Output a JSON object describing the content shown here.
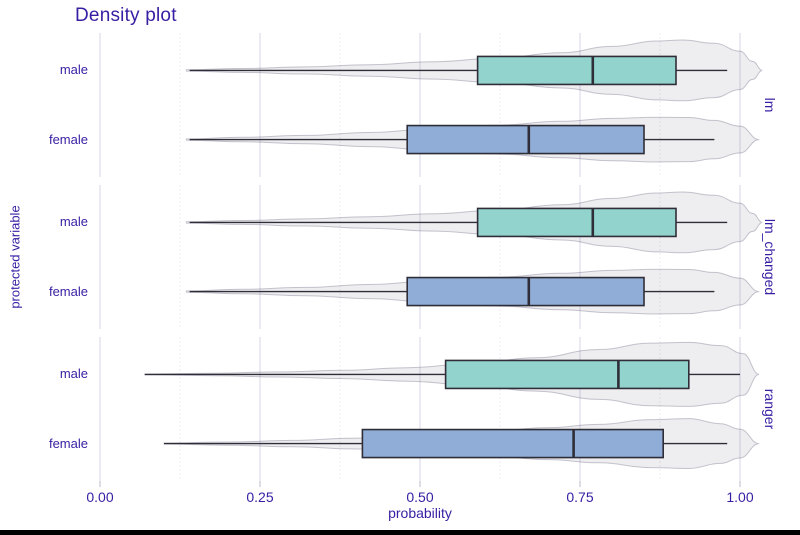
{
  "title": "Density plot",
  "x_axis": {
    "label": "probability",
    "ticks": [
      "0.00",
      "0.25",
      "0.50",
      "0.75",
      "1.00"
    ],
    "tick_values": [
      0,
      0.25,
      0.5,
      0.75,
      1.0
    ]
  },
  "y_axis": {
    "label": "protected variable"
  },
  "colors": {
    "text": "#371ea3",
    "male_box": "#93d3cd",
    "female_box": "#8fadd6",
    "box_stroke": "#2f2e38",
    "violin_fill": "rgba(87,83,112,0.10)",
    "violin_stroke": "rgba(87,83,112,0.32)",
    "grid_major": "#dedce8",
    "grid_minor": "#eeedf4",
    "tick_mark": "#c8c6d2",
    "bottom_bar": "#000000"
  },
  "chart_data": {
    "type": "violin-box",
    "xlabel": "probability",
    "ylabel": "protected variable",
    "xlim": [
      0,
      1
    ],
    "grid": true,
    "minor_ticks": [
      0.125,
      0.375,
      0.625,
      0.875
    ],
    "facets": [
      {
        "label": "lm",
        "rows": [
          {
            "category": "male",
            "color_key": "male_box",
            "box": {
              "min": 0.14,
              "q1": 0.59,
              "median": 0.77,
              "q3": 0.9,
              "max": 0.98
            },
            "violin": [
              [
                0.135,
                0.02
              ],
              [
                0.22,
                0.06
              ],
              [
                0.32,
                0.11
              ],
              [
                0.42,
                0.18
              ],
              [
                0.52,
                0.27
              ],
              [
                0.62,
                0.38
              ],
              [
                0.72,
                0.55
              ],
              [
                0.8,
                0.75
              ],
              [
                0.87,
                0.92
              ],
              [
                0.91,
                0.95
              ],
              [
                0.96,
                0.85
              ],
              [
                1.0,
                0.6
              ],
              [
                1.02,
                0.28
              ],
              [
                1.035,
                0.0
              ]
            ]
          },
          {
            "category": "female",
            "color_key": "female_box",
            "box": {
              "min": 0.14,
              "q1": 0.48,
              "median": 0.67,
              "q3": 0.85,
              "max": 0.96
            },
            "violin": [
              [
                0.135,
                0.02
              ],
              [
                0.22,
                0.07
              ],
              [
                0.32,
                0.13
              ],
              [
                0.42,
                0.22
              ],
              [
                0.52,
                0.33
              ],
              [
                0.62,
                0.45
              ],
              [
                0.72,
                0.57
              ],
              [
                0.8,
                0.66
              ],
              [
                0.87,
                0.7
              ],
              [
                0.92,
                0.69
              ],
              [
                0.96,
                0.6
              ],
              [
                1.0,
                0.42
              ],
              [
                1.03,
                0.0
              ]
            ]
          }
        ]
      },
      {
        "label": "lm_changed",
        "rows": [
          {
            "category": "male",
            "color_key": "male_box",
            "box": {
              "min": 0.14,
              "q1": 0.59,
              "median": 0.77,
              "q3": 0.9,
              "max": 0.98
            },
            "violin": [
              [
                0.135,
                0.02
              ],
              [
                0.22,
                0.06
              ],
              [
                0.32,
                0.11
              ],
              [
                0.42,
                0.18
              ],
              [
                0.52,
                0.27
              ],
              [
                0.62,
                0.38
              ],
              [
                0.72,
                0.55
              ],
              [
                0.8,
                0.75
              ],
              [
                0.87,
                0.92
              ],
              [
                0.91,
                0.95
              ],
              [
                0.96,
                0.85
              ],
              [
                1.0,
                0.6
              ],
              [
                1.02,
                0.28
              ],
              [
                1.035,
                0.0
              ]
            ]
          },
          {
            "category": "female",
            "color_key": "female_box",
            "box": {
              "min": 0.14,
              "q1": 0.48,
              "median": 0.67,
              "q3": 0.85,
              "max": 0.96
            },
            "violin": [
              [
                0.135,
                0.02
              ],
              [
                0.22,
                0.07
              ],
              [
                0.32,
                0.13
              ],
              [
                0.42,
                0.22
              ],
              [
                0.52,
                0.33
              ],
              [
                0.62,
                0.45
              ],
              [
                0.72,
                0.57
              ],
              [
                0.8,
                0.66
              ],
              [
                0.87,
                0.7
              ],
              [
                0.92,
                0.69
              ],
              [
                0.96,
                0.6
              ],
              [
                1.0,
                0.42
              ],
              [
                1.03,
                0.0
              ]
            ]
          }
        ]
      },
      {
        "label": "ranger",
        "rows": [
          {
            "category": "male",
            "color_key": "male_box",
            "box": {
              "min": 0.07,
              "q1": 0.54,
              "median": 0.81,
              "q3": 0.92,
              "max": 1.0
            },
            "violin": [
              [
                0.07,
                0.015
              ],
              [
                0.18,
                0.04
              ],
              [
                0.28,
                0.08
              ],
              [
                0.38,
                0.13
              ],
              [
                0.48,
                0.21
              ],
              [
                0.58,
                0.33
              ],
              [
                0.68,
                0.52
              ],
              [
                0.78,
                0.78
              ],
              [
                0.86,
                0.98
              ],
              [
                0.92,
                1.0
              ],
              [
                0.97,
                0.9
              ],
              [
                1.005,
                0.65
              ],
              [
                1.03,
                0.0
              ]
            ]
          },
          {
            "category": "female",
            "color_key": "female_box",
            "box": {
              "min": 0.1,
              "q1": 0.41,
              "median": 0.74,
              "q3": 0.88,
              "max": 0.98
            },
            "violin": [
              [
                0.1,
                0.015
              ],
              [
                0.2,
                0.05
              ],
              [
                0.3,
                0.1
              ],
              [
                0.4,
                0.17
              ],
              [
                0.5,
                0.27
              ],
              [
                0.6,
                0.38
              ],
              [
                0.7,
                0.5
              ],
              [
                0.78,
                0.6
              ],
              [
                0.86,
                0.75
              ],
              [
                0.92,
                0.78
              ],
              [
                0.97,
                0.62
              ],
              [
                1.0,
                0.45
              ],
              [
                1.03,
                0.0
              ]
            ]
          }
        ]
      }
    ]
  }
}
